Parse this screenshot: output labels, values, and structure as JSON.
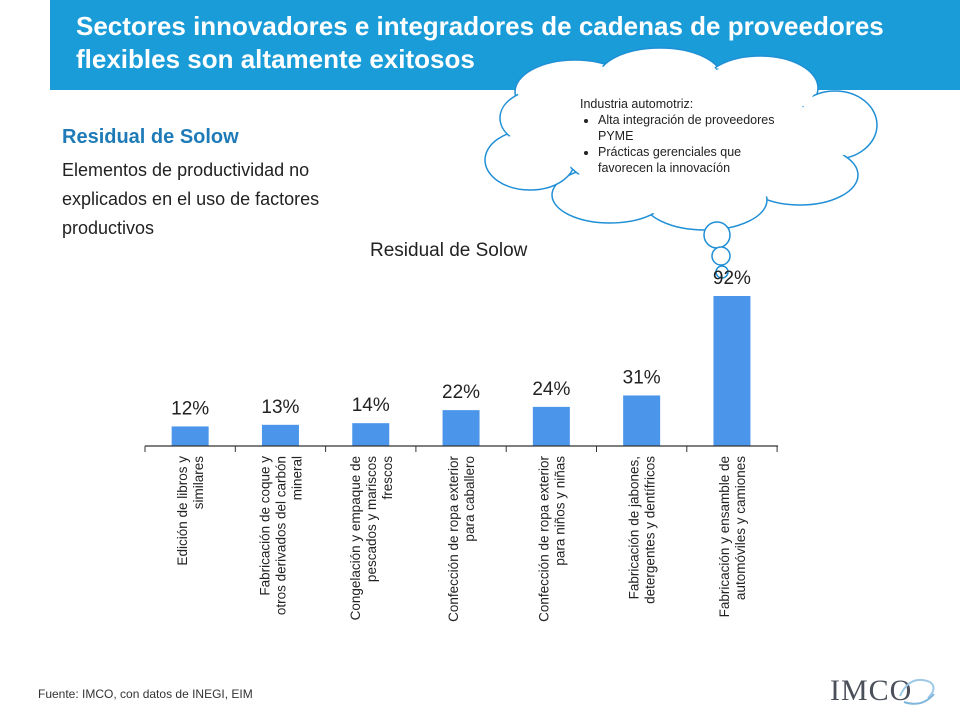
{
  "header": {
    "title": "Sectores innovadores e integradores de cadenas de proveedores flexibles son altamente exitosos"
  },
  "intro": {
    "subtitle": "Residual de Solow",
    "description": "Elementos de productividad no explicados en  el uso de factores productivos"
  },
  "callout": {
    "heading": "Industria automotriz:",
    "bullets": [
      "Alta integración de proveedores PYME",
      "Prácticas gerenciales que favorecen la innovacíón"
    ]
  },
  "chart_data": {
    "type": "bar",
    "title": "Residual de Solow",
    "categories": [
      [
        "Edición de libros y",
        "similares"
      ],
      [
        "Fabricación de coque y",
        "otros derivados del carbón",
        "mineral"
      ],
      [
        "Congelación y empaque de",
        "pescados y mariscos",
        "frescos"
      ],
      [
        "Confección de ropa exterior",
        "para caballero"
      ],
      [
        "Confección de ropa exterior",
        "para niños y niñas"
      ],
      [
        "Fabricación de jabones,",
        "detergentes y dentífricos"
      ],
      [
        "Fabricación y ensamble de",
        "automóviles y camiones"
      ]
    ],
    "values": [
      12,
      13,
      14,
      22,
      24,
      31,
      92
    ],
    "value_labels": [
      "12%",
      "13%",
      "14%",
      "22%",
      "24%",
      "31%",
      "92%"
    ],
    "unit": "%",
    "ylim": [
      0,
      100
    ],
    "grid": false,
    "legend": "none",
    "bar_color": "#4b96ea"
  },
  "footer": {
    "source": "Fuente: IMCO, con datos de INEGI, EIM",
    "logo": "IMCO"
  },
  "colors": {
    "title_bar": "#199cd7",
    "subtitle": "#1e7bb8",
    "bars": "#4b96ea",
    "cloud_outline": "#1f8fd6"
  }
}
